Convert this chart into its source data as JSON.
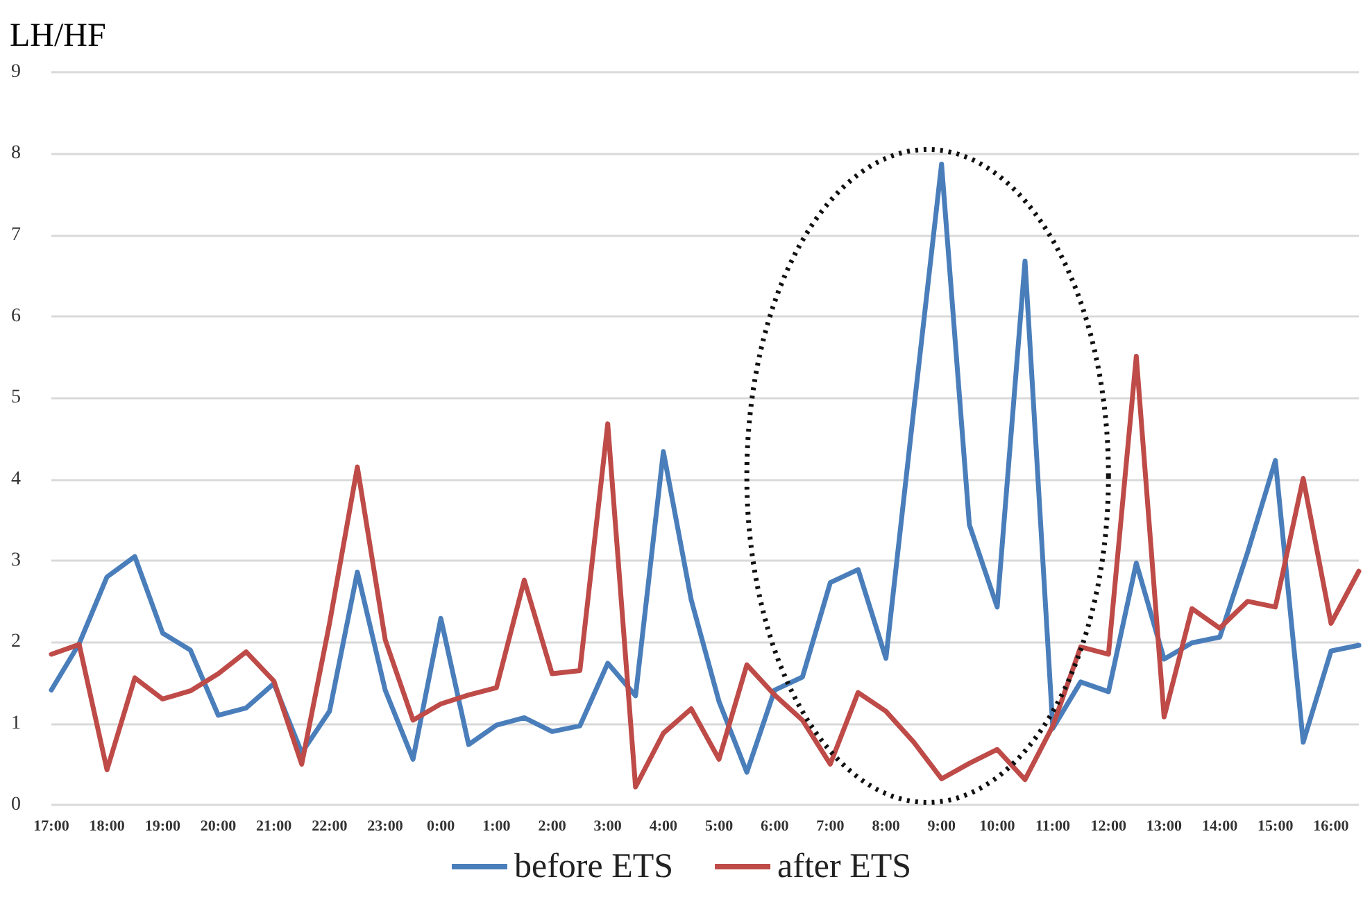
{
  "chart_data": {
    "type": "line",
    "ylabel": "LH/HF",
    "categories": [
      "17:00",
      null,
      "18:00",
      null,
      "19:00",
      null,
      "20:00",
      null,
      "21:00",
      null,
      "22:00",
      null,
      "23:00",
      null,
      "0:00",
      null,
      "1:00",
      null,
      "2:00",
      null,
      "3:00",
      null,
      "4:00",
      null,
      "5:00",
      null,
      "6:00",
      null,
      "7:00",
      null,
      "8:00",
      null,
      "9:00",
      null,
      "10:00",
      null,
      "11:00",
      null,
      "12:00",
      null,
      "13:00",
      null,
      "14:00",
      null,
      "15:00",
      null,
      "16:00",
      null
    ],
    "series": [
      {
        "name": "before ETS",
        "color": "#4a7ebb",
        "values": [
          1.41,
          1.98,
          2.8,
          3.05,
          2.11,
          1.9,
          1.1,
          1.19,
          1.49,
          0.64,
          1.15,
          2.86,
          1.41,
          0.56,
          2.29,
          0.74,
          0.98,
          1.07,
          0.9,
          0.97,
          1.74,
          1.34,
          4.34,
          2.52,
          1.27,
          0.4,
          1.41,
          1.57,
          2.73,
          2.89,
          1.8,
          4.85,
          7.87,
          3.44,
          2.43,
          6.68,
          0.94,
          1.51,
          1.39,
          2.97,
          1.79,
          1.99,
          2.06,
          3.1,
          4.23,
          0.77,
          1.89,
          1.96
        ]
      },
      {
        "name": "after ETS",
        "color": "#be4b48",
        "values": [
          1.85,
          1.97,
          0.43,
          1.56,
          1.3,
          1.4,
          1.61,
          1.88,
          1.52,
          0.5,
          2.23,
          4.15,
          2.03,
          1.04,
          1.24,
          1.35,
          1.44,
          2.76,
          1.61,
          1.65,
          4.68,
          0.22,
          0.88,
          1.18,
          0.56,
          1.72,
          1.35,
          1.04,
          0.5,
          1.38,
          1.15,
          0.77,
          0.32,
          0.51,
          0.68,
          0.31,
          0.97,
          1.94,
          1.85,
          5.51,
          1.08,
          2.41,
          2.17,
          2.5,
          2.43,
          4.01,
          2.23,
          2.87
        ]
      }
    ],
    "ylim": [
      0,
      9
    ],
    "yticks": [
      0,
      1,
      2,
      3,
      4,
      5,
      6,
      7,
      8,
      9
    ],
    "grid": "y",
    "legend": "bottom",
    "marker": "none",
    "line_style": "solid"
  }
}
